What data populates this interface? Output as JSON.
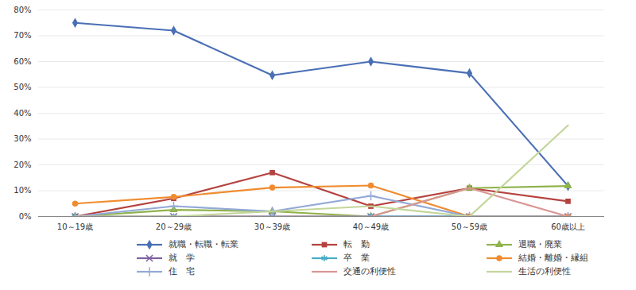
{
  "chart_data": {
    "type": "line",
    "categories": [
      "10～19歳",
      "20～29歳",
      "30～39歳",
      "40～49歳",
      "50～59歳",
      "60歳以上"
    ],
    "ylim": [
      0,
      80
    ],
    "yticks": [
      {
        "value": 0,
        "label": "0%"
      },
      {
        "value": 10,
        "label": "10%"
      },
      {
        "value": 20,
        "label": "20%"
      },
      {
        "value": 30,
        "label": "30%"
      },
      {
        "value": 40,
        "label": "40%"
      },
      {
        "value": 50,
        "label": "50%"
      },
      {
        "value": 60,
        "label": "60%"
      },
      {
        "value": 70,
        "label": "70%"
      },
      {
        "value": 80,
        "label": "80%"
      }
    ],
    "grid": true,
    "legend": "bottom",
    "series": [
      {
        "name": "就職・転職・転業",
        "color": "#4a6fb5",
        "marker": "diamond",
        "values": [
          75,
          72,
          54.7,
          60,
          55.5,
          11.8
        ]
      },
      {
        "name": "転　勤",
        "color": "#b5423f",
        "marker": "square",
        "values": [
          0,
          7,
          17,
          4,
          11,
          5.9
        ]
      },
      {
        "name": "退職・廃業",
        "color": "#8fb24a",
        "marker": "triangle",
        "values": [
          0,
          2.6,
          2,
          0,
          11,
          11.8
        ]
      },
      {
        "name": "就　学",
        "color": "#7e5fa0",
        "marker": "times",
        "values": [
          0,
          0,
          0,
          0,
          0,
          0
        ]
      },
      {
        "name": "卒　業",
        "color": "#4aacc6",
        "marker": "asterisk",
        "values": [
          0,
          0,
          0,
          0,
          0,
          0
        ]
      },
      {
        "name": "結婚・離婚・縁組",
        "color": "#f08c2f",
        "marker": "circle",
        "values": [
          5,
          7.6,
          11.2,
          12,
          0,
          0
        ]
      },
      {
        "name": "住　宅",
        "color": "#93a9d8",
        "marker": "plus",
        "values": [
          0,
          4,
          2,
          8,
          0,
          0
        ]
      },
      {
        "name": "交通の利便性",
        "color": "#d99694",
        "marker": "none",
        "values": [
          0,
          0,
          0,
          0,
          11,
          0
        ]
      },
      {
        "name": "生活の利便性",
        "color": "#c3d69b",
        "marker": "none",
        "values": [
          0,
          0,
          2,
          4,
          0,
          35.3
        ]
      }
    ]
  }
}
